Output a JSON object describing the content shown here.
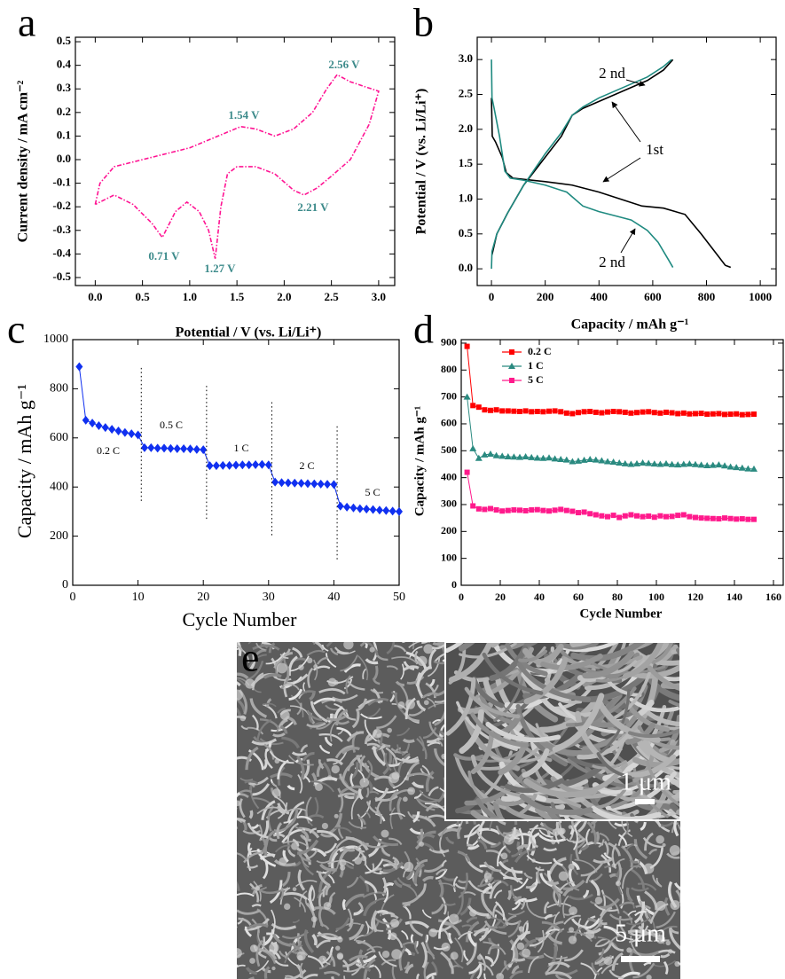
{
  "chart_data": [
    {
      "type": "line",
      "panel_label": "a",
      "x_label": "Potential / V (vs. Li/Li⁺)",
      "y_label": "Current density / mA cm⁻²",
      "xlim": [
        -0.21,
        3.17
      ],
      "ylim": [
        -0.534,
        0.519
      ],
      "xticks": [
        {
          "value": 0,
          "label": "0.0"
        },
        0.5,
        {
          "value": 1,
          "label": "1.0"
        },
        1.5,
        {
          "value": 2,
          "label": "2.0"
        },
        2.5,
        {
          "value": 3,
          "label": "3.0"
        }
      ],
      "yticks": [
        -0.5,
        -0.4,
        -0.3,
        -0.2,
        -0.1,
        {
          "value": 0,
          "label": "0.0"
        },
        0.1,
        0.2,
        0.3,
        0.4,
        0.5
      ],
      "annotations": [
        "2.56 V",
        "1.54 V",
        "2.21 V",
        "0.71 V",
        "1.27 V"
      ],
      "annotation_color": "#3d8b8b",
      "series": [
        {
          "color": "#ff1493",
          "line_style": "dashdot",
          "x": [
            0,
            0.05,
            0.2,
            0.5,
            1.0,
            1.3,
            1.54,
            1.7,
            1.9,
            2.1,
            2.3,
            2.45,
            2.56,
            2.7,
            3.0,
            2.9,
            2.7,
            2.5,
            2.35,
            2.21,
            2.1,
            1.9,
            1.7,
            1.5,
            1.4,
            1.33,
            1.27,
            1.2,
            1.1,
            0.97,
            0.85,
            0.71,
            0.6,
            0.4,
            0.2,
            0.1,
            0.0
          ],
          "values": [
            -0.19,
            -0.1,
            -0.03,
            0.0,
            0.05,
            0.1,
            0.14,
            0.13,
            0.1,
            0.13,
            0.2,
            0.3,
            0.36,
            0.33,
            0.29,
            0.15,
            0.0,
            -0.07,
            -0.12,
            -0.15,
            -0.13,
            -0.06,
            -0.03,
            -0.03,
            -0.06,
            -0.2,
            -0.42,
            -0.3,
            -0.22,
            -0.18,
            -0.22,
            -0.33,
            -0.27,
            -0.19,
            -0.15,
            -0.17,
            -0.19
          ]
        }
      ]
    },
    {
      "type": "line",
      "panel_label": "b",
      "x_label": "Capacity / mAh g⁻¹",
      "y_label": "Potential  / V (vs. Li/Li⁺)",
      "xlim": [
        -53,
        1059
      ],
      "ylim": [
        -0.24,
        3.32
      ],
      "xticks": [
        0,
        200,
        400,
        600,
        800,
        1000
      ],
      "yticks": [
        {
          "value": 0,
          "label": "0.0"
        },
        0.5,
        {
          "value": 1,
          "label": "1.0"
        },
        1.5,
        {
          "value": 2,
          "label": "2.0"
        },
        2.5,
        {
          "value": 3,
          "label": "3.0"
        }
      ],
      "annotations": [
        "2 nd",
        "1st",
        "2 nd"
      ],
      "series": [
        {
          "color": "#000000",
          "line_style": "solid",
          "x": [
            0,
            3,
            15,
            40,
            55,
            80,
            200,
            300,
            400,
            480,
            560,
            640,
            720,
            780,
            840,
            870,
            890,
            null,
            2,
            20,
            60,
            120,
            200,
            260,
            300,
            340,
            400,
            460,
            520,
            580,
            640,
            675
          ],
          "values": [
            2.45,
            1.9,
            1.82,
            1.6,
            1.38,
            1.3,
            1.25,
            1.2,
            1.1,
            1.0,
            0.9,
            0.87,
            0.78,
            0.5,
            0.2,
            0.05,
            0.02,
            null,
            0.2,
            0.5,
            0.8,
            1.2,
            1.6,
            1.9,
            2.2,
            2.3,
            2.4,
            2.5,
            2.6,
            2.7,
            2.85,
            3.0
          ]
        },
        {
          "color": "#1f8a80",
          "line_style": "solid",
          "x": [
            0,
            2,
            10,
            30,
            50,
            70,
            120,
            200,
            280,
            340,
            400,
            470,
            520,
            580,
            620,
            660,
            675,
            null,
            0,
            2,
            20,
            60,
            120,
            200,
            260,
            300,
            340,
            400,
            460,
            520,
            580,
            640,
            670
          ],
          "values": [
            3.0,
            2.45,
            2.3,
            1.9,
            1.4,
            1.3,
            1.27,
            1.2,
            1.1,
            0.9,
            0.82,
            0.75,
            0.7,
            0.55,
            0.38,
            0.12,
            0.02,
            null,
            0.0,
            0.25,
            0.5,
            0.8,
            1.2,
            1.65,
            1.95,
            2.2,
            2.32,
            2.45,
            2.55,
            2.65,
            2.75,
            2.9,
            3.0
          ]
        }
      ]
    },
    {
      "type": "line",
      "panel_label": "c",
      "x_label": "Cycle Number",
      "y_label": "Capacity / mAh g⁻¹",
      "xlim": [
        0,
        50
      ],
      "ylim": [
        0,
        1000
      ],
      "xticks": [
        0,
        10,
        20,
        30,
        40,
        50
      ],
      "yticks": [
        0,
        200,
        400,
        600,
        800,
        1000
      ],
      "annotations": [
        "0.2 C",
        "0.5 C",
        "1 C",
        "2 C",
        "5 C"
      ],
      "series": [
        {
          "color": "#1030f0",
          "marker": "diamond",
          "line_style": "solid",
          "x": [
            1,
            2,
            3,
            4,
            5,
            6,
            7,
            8,
            9,
            10,
            11,
            12,
            13,
            14,
            15,
            16,
            17,
            18,
            19,
            20,
            21,
            22,
            23,
            24,
            25,
            26,
            27,
            28,
            29,
            30,
            31,
            32,
            33,
            34,
            35,
            36,
            37,
            38,
            39,
            40,
            41,
            42,
            43,
            44,
            45,
            46,
            47,
            48,
            49,
            50
          ],
          "values": [
            890,
            672,
            660,
            650,
            642,
            635,
            628,
            622,
            617,
            612,
            560,
            560,
            558,
            558,
            557,
            556,
            556,
            555,
            553,
            552,
            487,
            487,
            488,
            488,
            489,
            490,
            490,
            491,
            492,
            490,
            420,
            418,
            417,
            416,
            415,
            414,
            413,
            412,
            411,
            410,
            322,
            318,
            315,
            312,
            310,
            308,
            306,
            304,
            302,
            300
          ]
        }
      ]
    },
    {
      "type": "line",
      "panel_label": "d",
      "x_label": "Cycle Number",
      "y_label": "Capacity / mAh g⁻¹",
      "xlim": [
        0,
        165
      ],
      "ylim": [
        0,
        913
      ],
      "xticks": [
        0,
        20,
        40,
        60,
        80,
        100,
        120,
        140,
        160
      ],
      "yticks": [
        0,
        100,
        200,
        300,
        400,
        500,
        600,
        700,
        800,
        900
      ],
      "legend": "upper-center",
      "x": [
        3,
        6,
        9,
        12,
        15,
        18,
        21,
        24,
        27,
        30,
        33,
        36,
        39,
        42,
        45,
        48,
        51,
        54,
        57,
        60,
        63,
        66,
        69,
        72,
        75,
        78,
        81,
        84,
        87,
        90,
        93,
        96,
        99,
        102,
        105,
        108,
        111,
        114,
        117,
        120,
        123,
        126,
        129,
        132,
        135,
        138,
        141,
        144,
        147,
        150
      ],
      "series": [
        {
          "name": "0.2 C",
          "color": "#ff0000",
          "marker": "square",
          "values": [
            888,
            668,
            662,
            652,
            650,
            652,
            648,
            648,
            647,
            646,
            648,
            645,
            646,
            645,
            647,
            648,
            645,
            640,
            638,
            642,
            645,
            646,
            643,
            641,
            644,
            646,
            645,
            643,
            640,
            642,
            644,
            645,
            642,
            640,
            643,
            641,
            638,
            640,
            637,
            638,
            639,
            636,
            637,
            638,
            635,
            636,
            637,
            634,
            635,
            636
          ]
        },
        {
          "name": "1 C",
          "color": "#2a8a80",
          "marker": "triangle",
          "values": [
            700,
            508,
            472,
            485,
            488,
            482,
            480,
            478,
            477,
            476,
            478,
            475,
            473,
            472,
            474,
            470,
            468,
            466,
            460,
            462,
            465,
            468,
            466,
            463,
            460,
            458,
            455,
            452,
            450,
            452,
            455,
            453,
            451,
            450,
            452,
            449,
            448,
            450,
            451,
            449,
            447,
            445,
            446,
            448,
            444,
            440,
            438,
            436,
            433,
            432
          ]
        },
        {
          "name": "5 C",
          "color": "#ff1a8c",
          "marker": "square",
          "values": [
            420,
            295,
            284,
            282,
            285,
            280,
            276,
            278,
            280,
            279,
            277,
            280,
            281,
            278,
            276,
            279,
            282,
            278,
            275,
            270,
            272,
            266,
            262,
            258,
            255,
            260,
            252,
            258,
            262,
            258,
            255,
            257,
            253,
            258,
            255,
            256,
            260,
            262,
            255,
            252,
            250,
            249,
            248,
            247,
            250,
            248,
            246,
            247,
            245,
            245
          ]
        }
      ]
    }
  ],
  "image_panel": {
    "panel_label": "e",
    "inset_scale_bar": "1 μm",
    "scale_bar": "5 μm"
  }
}
